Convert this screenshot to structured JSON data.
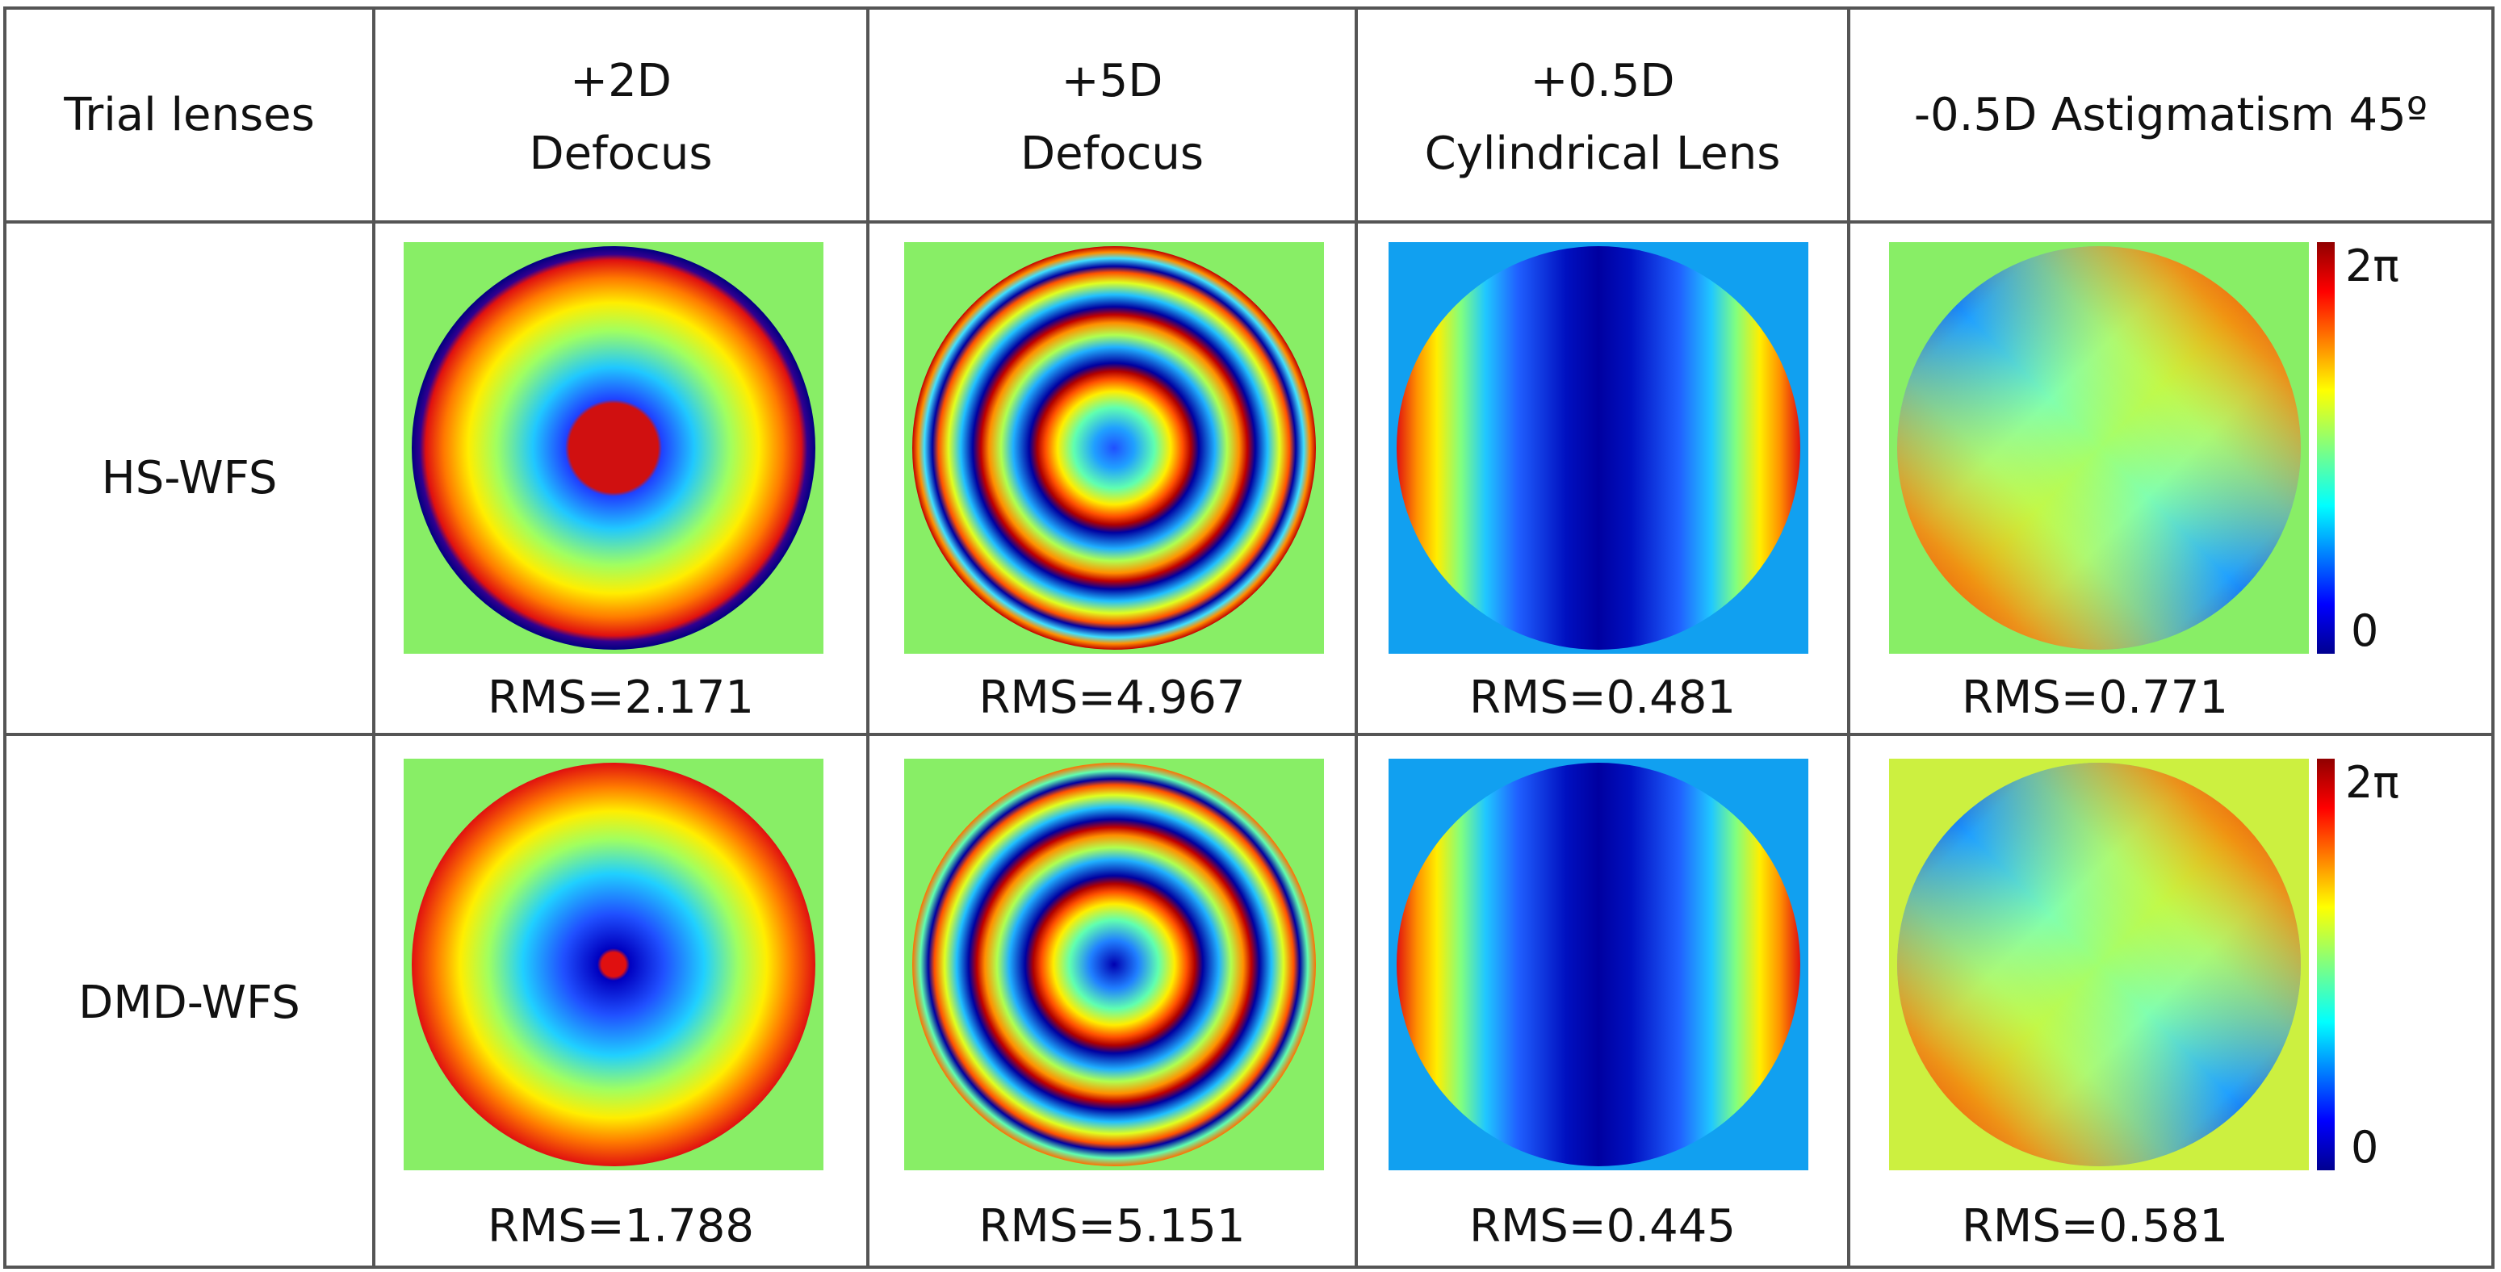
{
  "header": {
    "corner": "Trial lenses",
    "columns": [
      {
        "line1": "+2D",
        "line2": "Defocus"
      },
      {
        "line1": "+5D",
        "line2": "Defocus"
      },
      {
        "line1": "+0.5D",
        "line2": "Cylindrical Lens"
      },
      {
        "line1": "-0.5D Astigmatism 45º",
        "line2": ""
      }
    ]
  },
  "rows": [
    {
      "label": "HS-WFS",
      "rms": [
        "RMS=2.171",
        "RMS=4.967",
        "RMS=0.481",
        "RMS=0.771"
      ]
    },
    {
      "label": "DMD-WFS",
      "rms": [
        "RMS=1.788",
        "RMS=5.151",
        "RMS=0.445",
        "RMS=0.581"
      ]
    }
  ],
  "colorbar": {
    "max_label": "2π",
    "min_label": "0"
  },
  "colors": {
    "grid": "#555555",
    "panel_green": "#88ee66",
    "panel_blue": "#11a0f0",
    "panel_yellowgreen": "#ccf040"
  }
}
